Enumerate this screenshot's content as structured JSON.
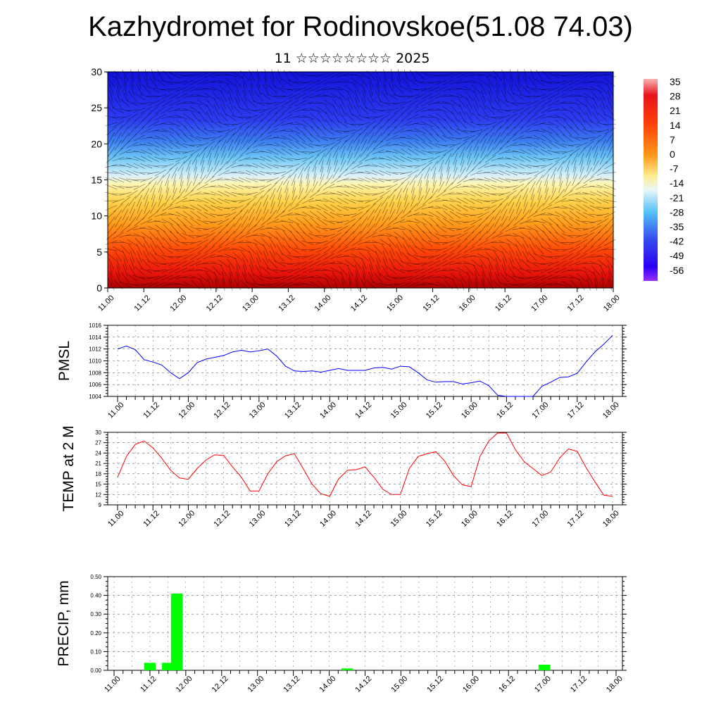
{
  "title": "Kazhydromet for Rodinovskoe(51.08 74.03)",
  "subtitle": "11 ☆☆☆☆☆☆☆☆ 2025",
  "chart_data": [
    {
      "type": "heatmap",
      "title": "",
      "ylim": [
        0,
        30
      ],
      "yticks": [
        "0",
        "5",
        "10",
        "15",
        "20",
        "25",
        "30"
      ],
      "xticks": [
        "11.00",
        "11.12",
        "12.00",
        "12.12",
        "13.00",
        "13.12",
        "14.00",
        "14.12",
        "15.00",
        "15.12",
        "16.00",
        "16.12",
        "17.00",
        "17.12",
        "18.00"
      ],
      "colorbar_labels": [
        "35",
        "28",
        "21",
        "14",
        "7",
        "0",
        "-7",
        "-14",
        "-21",
        "-28",
        "-35",
        "-42",
        "-49",
        "-56"
      ],
      "colors": {
        "warm": "#d7191c",
        "mid": "#ffffb2",
        "cold": "#2b00ff"
      }
    },
    {
      "type": "line",
      "ylabel": "PMSL",
      "ylim": [
        1004,
        1016
      ],
      "yticks": [
        "1004",
        "1006",
        "1008",
        "1010",
        "1012",
        "1014",
        "1016"
      ],
      "xticks": [
        "11.00",
        "11.12",
        "12.00",
        "12.12",
        "13.00",
        "13.12",
        "14.00",
        "14.12",
        "15.00",
        "15.12",
        "16.00",
        "16.12",
        "17.00",
        "17.12",
        "18.00"
      ],
      "x_hours": [
        0,
        3,
        6,
        9,
        12,
        15,
        18,
        21,
        24,
        27,
        30,
        33,
        36,
        39,
        42,
        45,
        48,
        51,
        54,
        57,
        60,
        63,
        66,
        69,
        72,
        75,
        78,
        81,
        84,
        87,
        90,
        93,
        96,
        99,
        102,
        105,
        108,
        111,
        114,
        117,
        120,
        123,
        126,
        129,
        132,
        135,
        138,
        141,
        144,
        147,
        150,
        153,
        156,
        159,
        162,
        165,
        168
      ],
      "values": [
        1012.0,
        1012.5,
        1011.9,
        1010.2,
        1009.8,
        1009.3,
        1008.0,
        1007.0,
        1008.0,
        1009.7,
        1010.3,
        1010.6,
        1010.9,
        1011.5,
        1011.8,
        1011.5,
        1011.7,
        1012.0,
        1010.8,
        1009.1,
        1008.3,
        1008.2,
        1008.3,
        1008.1,
        1008.4,
        1008.7,
        1008.4,
        1008.4,
        1008.4,
        1008.8,
        1008.9,
        1008.6,
        1009.1,
        1009.0,
        1008.0,
        1006.8,
        1006.4,
        1006.5,
        1006.5,
        1006.1,
        1006.3,
        1006.6,
        1005.8,
        1004.2,
        1004.0,
        1004.0,
        1004.0,
        1004.0,
        1005.7,
        1006.4,
        1007.2,
        1007.3,
        1007.9,
        1009.8,
        1011.5,
        1012.8,
        1014.3
      ],
      "color": "#0000ff"
    },
    {
      "type": "line",
      "ylabel": "TEMP at 2 M",
      "ylim": [
        9,
        30
      ],
      "yticks": [
        "9",
        "12",
        "15",
        "18",
        "21",
        "24",
        "27",
        "30"
      ],
      "xticks": [
        "11.00",
        "11.12",
        "12.00",
        "12.12",
        "13.00",
        "13.12",
        "14.00",
        "14.12",
        "15.00",
        "15.12",
        "16.00",
        "16.12",
        "17.00",
        "17.12",
        "18.00"
      ],
      "x_hours": [
        0,
        3,
        6,
        9,
        12,
        15,
        18,
        21,
        24,
        27,
        30,
        33,
        36,
        39,
        42,
        45,
        48,
        51,
        54,
        57,
        60,
        63,
        66,
        69,
        72,
        75,
        78,
        81,
        84,
        87,
        90,
        93,
        96,
        99,
        102,
        105,
        108,
        111,
        114,
        117,
        120,
        123,
        126,
        129,
        132,
        135,
        138,
        141,
        144,
        147,
        150,
        153,
        156,
        159,
        162,
        165,
        168
      ],
      "values": [
        17.0,
        23.0,
        26.5,
        27.5,
        25.5,
        22.5,
        19.0,
        16.8,
        16.4,
        19.5,
        22.0,
        23.5,
        23.3,
        20.0,
        17.0,
        13.0,
        13.0,
        18.0,
        21.5,
        23.2,
        23.8,
        19.5,
        15.0,
        12.2,
        11.5,
        16.5,
        19.0,
        19.2,
        20.0,
        17.0,
        13.5,
        12.0,
        12.0,
        19.5,
        23.0,
        23.8,
        24.4,
        21.7,
        17.5,
        14.8,
        14.3,
        23.0,
        27.5,
        29.8,
        29.8,
        25.0,
        21.5,
        19.5,
        17.5,
        18.5,
        22.5,
        25.2,
        24.5,
        19.8,
        15.7,
        11.8,
        11.5
      ],
      "color": "#ff0000"
    },
    {
      "type": "bar",
      "ylabel": "PRECIP, mm",
      "ylim": [
        0,
        0.5
      ],
      "yticks": [
        "0.00",
        "0.10",
        "0.20",
        "0.30",
        "0.40",
        "0.50"
      ],
      "xticks": [
        "11.00",
        "11.12",
        "12.00",
        "12.12",
        "13.00",
        "13.12",
        "14.00",
        "14.12",
        "15.00",
        "15.12",
        "16.00",
        "16.12",
        "17.00",
        "17.12",
        "18.00"
      ],
      "bar_hours": [
        12,
        18,
        21,
        78,
        144
      ],
      "values": [
        0.04,
        0.04,
        0.41,
        0.01,
        0.03
      ],
      "color": "#00ff00"
    }
  ]
}
